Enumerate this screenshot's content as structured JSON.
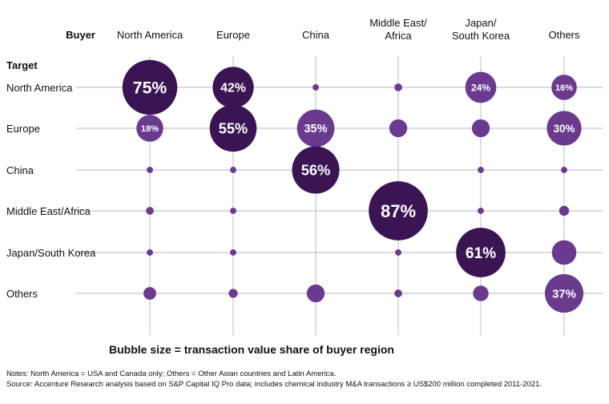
{
  "chart_data": {
    "type": "bubble-matrix",
    "x_header": "Buyer",
    "y_header": "Target",
    "buyers": [
      "North America",
      "Europe",
      "China",
      "Middle East/\nAfrica",
      "Japan/\nSouth Korea",
      "Others"
    ],
    "targets": [
      "North America",
      "Europe",
      "China",
      "Middle East/Africa",
      "Japan/South Korea",
      "Others"
    ],
    "cells": [
      [
        {
          "value": 75,
          "label": "75%"
        },
        {
          "value": 18,
          "label": "18%"
        },
        {
          "value": 1,
          "label": ""
        },
        {
          "value": 1.5,
          "label": ""
        },
        {
          "value": 1,
          "label": ""
        },
        {
          "value": 4,
          "label": ""
        }
      ],
      [
        {
          "value": 42,
          "label": "42%"
        },
        {
          "value": 55,
          "label": "55%"
        },
        {
          "value": 1,
          "label": ""
        },
        {
          "value": 1,
          "label": ""
        },
        {
          "value": 1,
          "label": ""
        },
        {
          "value": 2,
          "label": ""
        }
      ],
      [
        {
          "value": 1,
          "label": ""
        },
        {
          "value": 35,
          "label": "35%"
        },
        {
          "value": 56,
          "label": "56%"
        },
        {
          "value": 0,
          "label": ""
        },
        {
          "value": 0,
          "label": ""
        },
        {
          "value": 8,
          "label": ""
        }
      ],
      [
        {
          "value": 1.5,
          "label": ""
        },
        {
          "value": 8,
          "label": ""
        },
        {
          "value": 0,
          "label": ""
        },
        {
          "value": 87,
          "label": "87%"
        },
        {
          "value": 1,
          "label": ""
        },
        {
          "value": 1.5,
          "label": ""
        }
      ],
      [
        {
          "value": 24,
          "label": "24%"
        },
        {
          "value": 8,
          "label": ""
        },
        {
          "value": 1,
          "label": ""
        },
        {
          "value": 1,
          "label": ""
        },
        {
          "value": 61,
          "label": "61%"
        },
        {
          "value": 6,
          "label": ""
        }
      ],
      [
        {
          "value": 16,
          "label": "16%"
        },
        {
          "value": 30,
          "label": "30%"
        },
        {
          "value": 1,
          "label": ""
        },
        {
          "value": 2.5,
          "label": ""
        },
        {
          "value": 15,
          "label": ""
        },
        {
          "value": 37,
          "label": "37%"
        }
      ]
    ],
    "colors": {
      "bubble_large": "#3b1454",
      "bubble_small": "#6a3a8f",
      "grid": "#cfcfcf",
      "label": "#ffffff"
    }
  },
  "legend_note": "Bubble size = transaction value share of buyer region",
  "notes": [
    "Notes: North America = USA and Canada only; Others = Other Asian countries and Latin America.",
    "Source: Accenture Research analysis based on S&P Capital IQ Pro data; includes chemical industry M&A transactions ≥ US$200 million completed 2011-2021."
  ]
}
